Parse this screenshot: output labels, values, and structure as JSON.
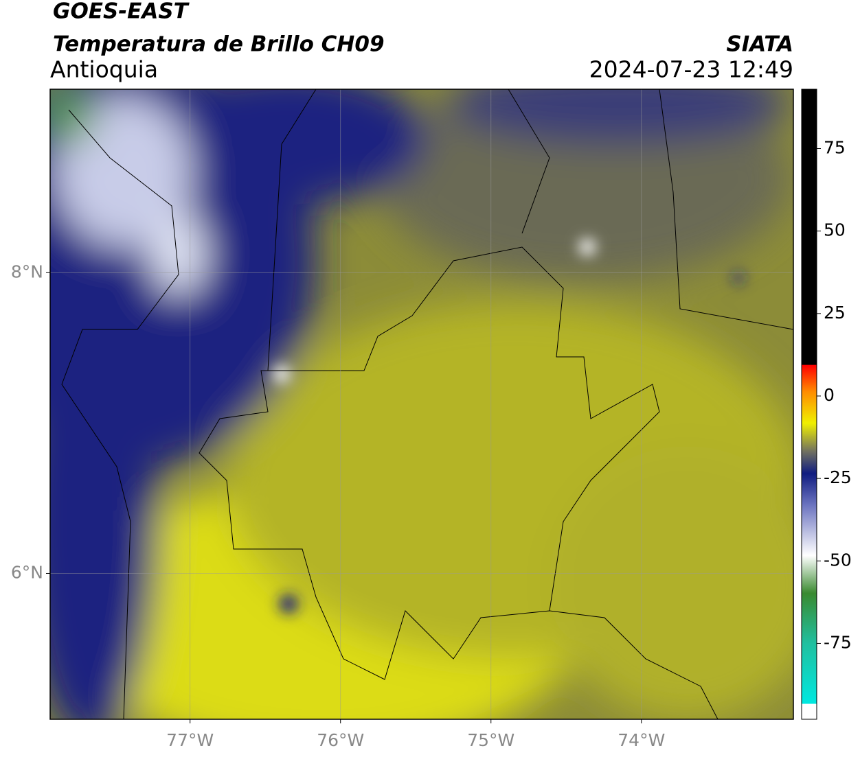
{
  "header": {
    "title": "GOES-EAST",
    "subtitle": "Temperatura de Brillo CH09",
    "region": "Antioquia",
    "source": "SIATA",
    "timestamp": "2024-07-23 12:49"
  },
  "map": {
    "lon_range": [
      -77.93,
      -72.99
    ],
    "lat_range": [
      5.03,
      9.22
    ],
    "lon_ticks": [
      {
        "value": -77,
        "label": "77°W"
      },
      {
        "value": -76,
        "label": "76°W"
      },
      {
        "value": -75,
        "label": "75°W"
      },
      {
        "value": -74,
        "label": "74°W"
      }
    ],
    "lat_ticks": [
      {
        "value": 8,
        "label": "8°N"
      },
      {
        "value": 6,
        "label": "6°N"
      }
    ]
  },
  "colorbar": {
    "range": [
      -98,
      93
    ],
    "ticks": [
      75,
      50,
      25,
      0,
      -25,
      -50,
      -75
    ]
  }
}
